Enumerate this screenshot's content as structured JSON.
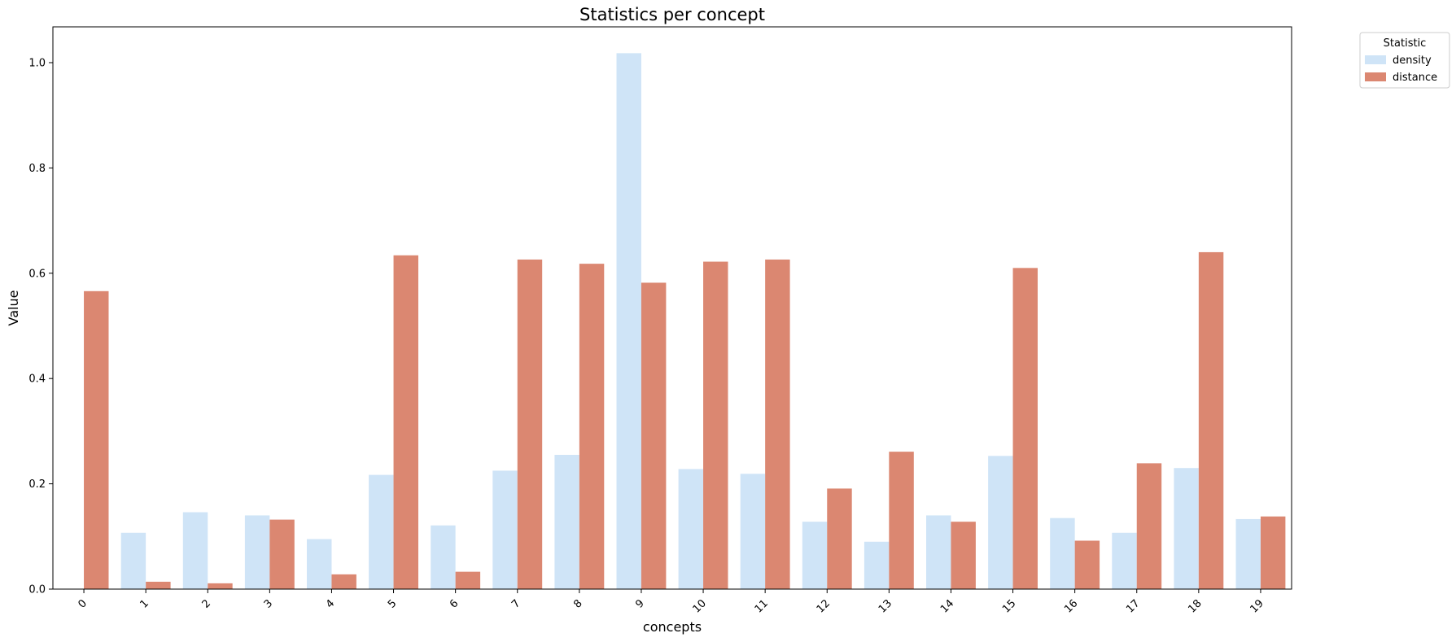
{
  "chart_data": {
    "type": "bar",
    "title": "Statistics per concept",
    "xlabel": "concepts",
    "ylabel": "Value",
    "categories": [
      "0",
      "1",
      "2",
      "3",
      "4",
      "5",
      "6",
      "7",
      "8",
      "9",
      "10",
      "11",
      "12",
      "13",
      "14",
      "15",
      "16",
      "17",
      "18",
      "19"
    ],
    "series": [
      {
        "name": "density",
        "color": "#cfe4f7",
        "values": [
          0.0,
          0.107,
          0.146,
          0.14,
          0.095,
          0.217,
          0.121,
          0.225,
          0.255,
          1.018,
          0.228,
          0.219,
          0.128,
          0.09,
          0.14,
          0.253,
          0.135,
          0.107,
          0.23,
          0.133
        ]
      },
      {
        "name": "distance",
        "color": "#db8771",
        "values": [
          0.566,
          0.014,
          0.011,
          0.132,
          0.028,
          0.634,
          0.033,
          0.626,
          0.618,
          0.582,
          0.622,
          0.626,
          0.191,
          0.261,
          0.128,
          0.61,
          0.092,
          0.239,
          0.64,
          0.138
        ]
      }
    ],
    "ylim": [
      0,
      1.068
    ],
    "yticks": [
      "0.0",
      "0.2",
      "0.4",
      "0.6",
      "0.8",
      "1.0"
    ],
    "legend": {
      "title": "Statistic",
      "placement": "outside-top-right"
    },
    "grid": false
  }
}
